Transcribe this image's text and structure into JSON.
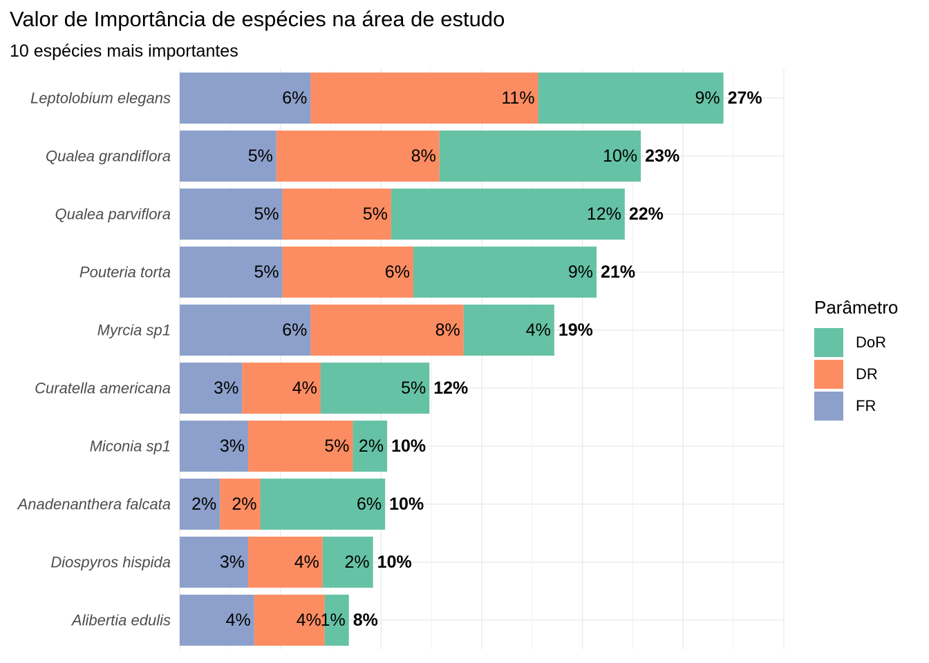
{
  "chart_data": {
    "type": "bar",
    "orientation": "horizontal",
    "stacked": true,
    "title": "Valor de Importância de espécies na área de estudo",
    "subtitle": "10 espécies mais importantes",
    "xlabel": "",
    "ylabel": "",
    "xlim": [
      0,
      30
    ],
    "grid": true,
    "legend_position": "right",
    "legend_title": "Parâmetro",
    "categories": [
      "Leptolobium elegans",
      "Qualea grandiflora",
      "Qualea parviflora",
      "Pouteria torta",
      "Myrcia sp1",
      "Curatella americana",
      "Miconia sp1",
      "Anadenanthera falcata",
      "Diospyros hispida",
      "Alibertia edulis"
    ],
    "series": [
      {
        "name": "FR",
        "color": "#8DA0CB",
        "values": [
          6.5,
          4.8,
          5.1,
          5.1,
          6.5,
          3.1,
          3.4,
          2.0,
          3.4,
          3.7
        ],
        "labels": [
          "6%",
          "5%",
          "5%",
          "5%",
          "6%",
          "3%",
          "3%",
          "2%",
          "3%",
          "4%"
        ]
      },
      {
        "name": "DR",
        "color": "#FC8D62",
        "values": [
          11.3,
          8.1,
          5.4,
          6.5,
          7.6,
          3.9,
          5.2,
          2.0,
          3.7,
          3.5
        ],
        "labels": [
          "11%",
          "8%",
          "5%",
          "6%",
          "8%",
          "4%",
          "5%",
          "2%",
          "4%",
          "4%"
        ]
      },
      {
        "name": "DoR",
        "color": "#66C2A5",
        "values": [
          9.2,
          10.0,
          11.6,
          9.1,
          4.5,
          5.4,
          1.7,
          6.2,
          2.5,
          1.2
        ],
        "labels": [
          "9%",
          "10%",
          "12%",
          "9%",
          "4%",
          "5%",
          "2%",
          "6%",
          "2%",
          "1%"
        ]
      }
    ],
    "totals": [
      "27%",
      "23%",
      "22%",
      "21%",
      "19%",
      "12%",
      "10%",
      "10%",
      "10%",
      "8%"
    ]
  },
  "legend": {
    "title": "Parâmetro",
    "items": [
      {
        "label": "DoR",
        "color": "#66C2A5"
      },
      {
        "label": "DR",
        "color": "#FC8D62"
      },
      {
        "label": "FR",
        "color": "#8DA0CB"
      }
    ]
  }
}
